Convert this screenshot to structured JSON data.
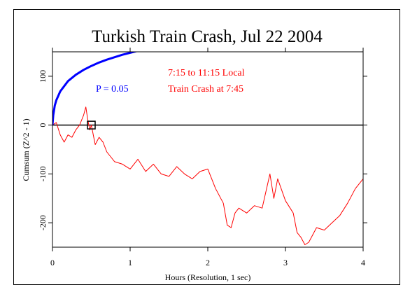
{
  "chart_data": {
    "type": "line",
    "title": "Turkish Train Crash, Jul 22 2004",
    "xlabel": "Hours (Resolution, 1 sec)",
    "ylabel": "Cumsum (Z^2 - 1)",
    "xlim": [
      0,
      4
    ],
    "ylim": [
      -250,
      150
    ],
    "x_ticks": [
      0,
      1,
      2,
      3,
      4
    ],
    "x_tick_labels": [
      "0",
      "1",
      "2",
      "3",
      "4"
    ],
    "y_ticks": [
      100,
      0,
      -100,
      -200
    ],
    "y_tick_labels": [
      "100",
      "0",
      "-100",
      "-200"
    ],
    "grid": false,
    "zero_line": 0,
    "annotations": [
      {
        "text": "7:15 to 11:15 Local",
        "color": "#ff0000"
      },
      {
        "text": "Train Crash at 7:45",
        "color": "#ff0000"
      },
      {
        "text": "P = 0.05",
        "color": "#0000ff"
      }
    ],
    "event_marker": {
      "x": 0.5,
      "y": 0
    },
    "series": [
      {
        "color": "#ff0000",
        "x": [
          0,
          0.05,
          0.1,
          0.15,
          0.2,
          0.25,
          0.3,
          0.35,
          0.4,
          0.43,
          0.45,
          0.48,
          0.5,
          0.55,
          0.6,
          0.65,
          0.7,
          0.75,
          0.8,
          0.9,
          1.0,
          1.1,
          1.2,
          1.3,
          1.4,
          1.5,
          1.6,
          1.7,
          1.8,
          1.9,
          2.0,
          2.1,
          2.2,
          2.25,
          2.3,
          2.35,
          2.4,
          2.5,
          2.6,
          2.7,
          2.8,
          2.85,
          2.9,
          3.0,
          3.1,
          3.15,
          3.2,
          3.25,
          3.3,
          3.4,
          3.5,
          3.6,
          3.7,
          3.8,
          3.9,
          4.0
        ],
        "values": [
          0,
          5,
          -20,
          -35,
          -20,
          -25,
          -10,
          0,
          20,
          37,
          15,
          -10,
          0,
          -40,
          -25,
          -35,
          -55,
          -65,
          -75,
          -80,
          -90,
          -70,
          -95,
          -80,
          -100,
          -105,
          -85,
          -100,
          -110,
          -95,
          -90,
          -130,
          -160,
          -205,
          -210,
          -180,
          -170,
          -180,
          -165,
          -170,
          -100,
          -150,
          -110,
          -155,
          -180,
          -220,
          -230,
          -245,
          -240,
          -210,
          -215,
          -200,
          -185,
          -160,
          -130,
          -110
        ]
      },
      {
        "color": "#0000ff",
        "x": [
          0,
          0.01,
          0.03,
          0.05,
          0.1,
          0.2,
          0.3,
          0.4,
          0.5,
          0.6,
          0.7,
          0.8,
          0.9,
          1.0,
          1.1,
          1.2
        ],
        "values": [
          0,
          20,
          40,
          51,
          69,
          90,
          103,
          113,
          121,
          128,
          134,
          139,
          144,
          148,
          152,
          156
        ]
      }
    ]
  }
}
